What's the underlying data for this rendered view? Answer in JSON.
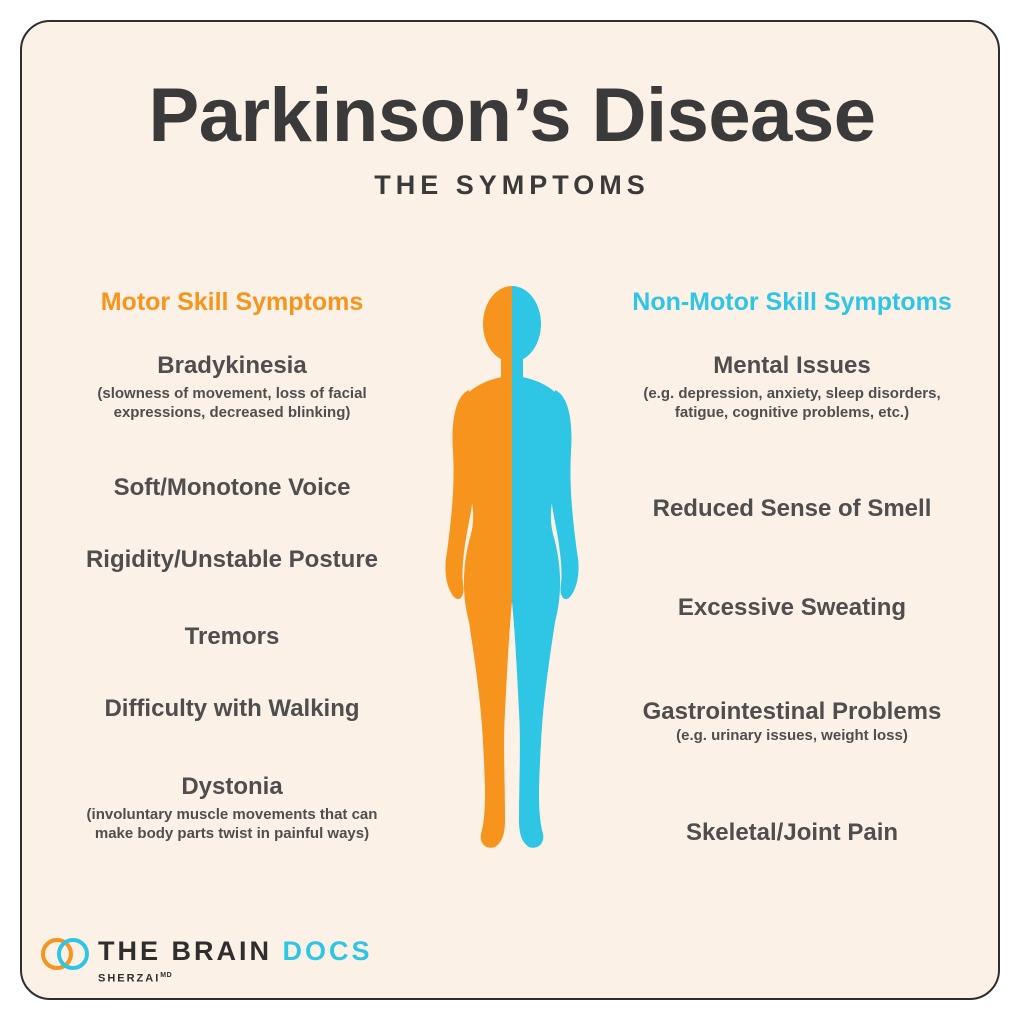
{
  "header": {
    "title": "Parkinson’s Disease",
    "subtitle": "THE SYMPTOMS"
  },
  "colors": {
    "motor": "#f7941d",
    "non_motor": "#2fc6e6",
    "text": "#4e4e4e",
    "background": "#fcf1e6"
  },
  "motor": {
    "heading": "Motor Skill Symptoms",
    "items": [
      {
        "name": "Bradykinesia",
        "desc": "(slowness of movement, loss of facial expressions, decreased blinking)"
      },
      {
        "name": "Soft/Monotone Voice",
        "desc": ""
      },
      {
        "name": "Rigidity/Unstable Posture",
        "desc": ""
      },
      {
        "name": "Tremors",
        "desc": ""
      },
      {
        "name": "Difficulty with Walking",
        "desc": ""
      },
      {
        "name": "Dystonia",
        "desc": "(involuntary muscle movements that can make body parts twist in painful ways)"
      }
    ]
  },
  "non_motor": {
    "heading": "Non-Motor Skill Symptoms",
    "items": [
      {
        "name": "Mental Issues",
        "desc": "(e.g. depression, anxiety, sleep disorders, fatigue, cognitive problems, etc.)"
      },
      {
        "name": "Reduced Sense of Smell",
        "desc": ""
      },
      {
        "name": "Excessive Sweating",
        "desc": ""
      },
      {
        "name": "Gastrointestinal Problems",
        "desc": "(e.g. urinary issues, weight loss)"
      },
      {
        "name": "Skeletal/Joint Pain",
        "desc": ""
      }
    ]
  },
  "logo": {
    "word_a": "THE BRAIN",
    "word_b": "DOCS",
    "sub": "SHERZAI",
    "sub_mark": "MD"
  }
}
